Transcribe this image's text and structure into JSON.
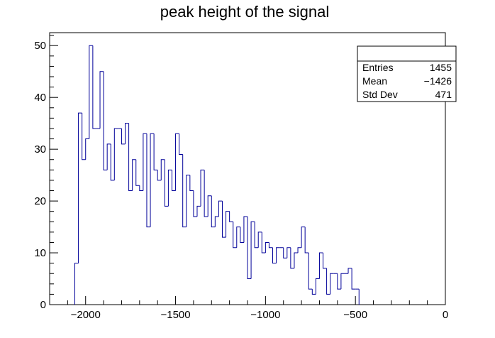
{
  "chart_data": {
    "type": "bar",
    "title": "peak height of the signal",
    "xlabel": "",
    "ylabel": "",
    "xlim": [
      -2200,
      0
    ],
    "ylim": [
      0,
      52.5
    ],
    "xticks": [
      -2000,
      -1500,
      -1000,
      -500,
      0
    ],
    "xtick_labels": [
      "−2000",
      "−1500",
      "−1000",
      "−500",
      "0"
    ],
    "yticks": [
      0,
      10,
      20,
      30,
      40,
      50
    ],
    "ytick_labels": [
      "0",
      "10",
      "20",
      "30",
      "40",
      "50"
    ],
    "grid": false,
    "bin_start": -2060,
    "bin_width": 20,
    "counts": [
      8,
      37,
      28,
      32,
      50,
      34,
      34,
      45,
      26,
      31,
      24,
      34,
      34,
      31,
      35,
      22,
      28,
      23,
      22,
      33,
      15,
      33,
      26,
      24,
      28,
      19,
      26,
      22,
      33,
      29,
      15,
      25,
      22,
      17,
      19,
      26,
      17,
      21,
      15,
      17,
      20,
      13,
      18,
      16,
      11,
      15,
      12,
      17,
      5,
      16,
      11,
      14,
      10,
      12,
      11,
      8,
      11,
      11,
      9,
      11,
      7,
      10,
      11,
      15,
      10,
      3,
      2,
      5,
      10,
      7,
      2,
      6,
      6,
      3,
      6,
      6,
      7,
      3,
      3
    ],
    "line_color": "#000099",
    "stats": {
      "entries_label": "Entries",
      "entries": "1455",
      "mean_label": "Mean",
      "mean": "−1426",
      "std_label": "Std Dev",
      "std": "471"
    }
  }
}
